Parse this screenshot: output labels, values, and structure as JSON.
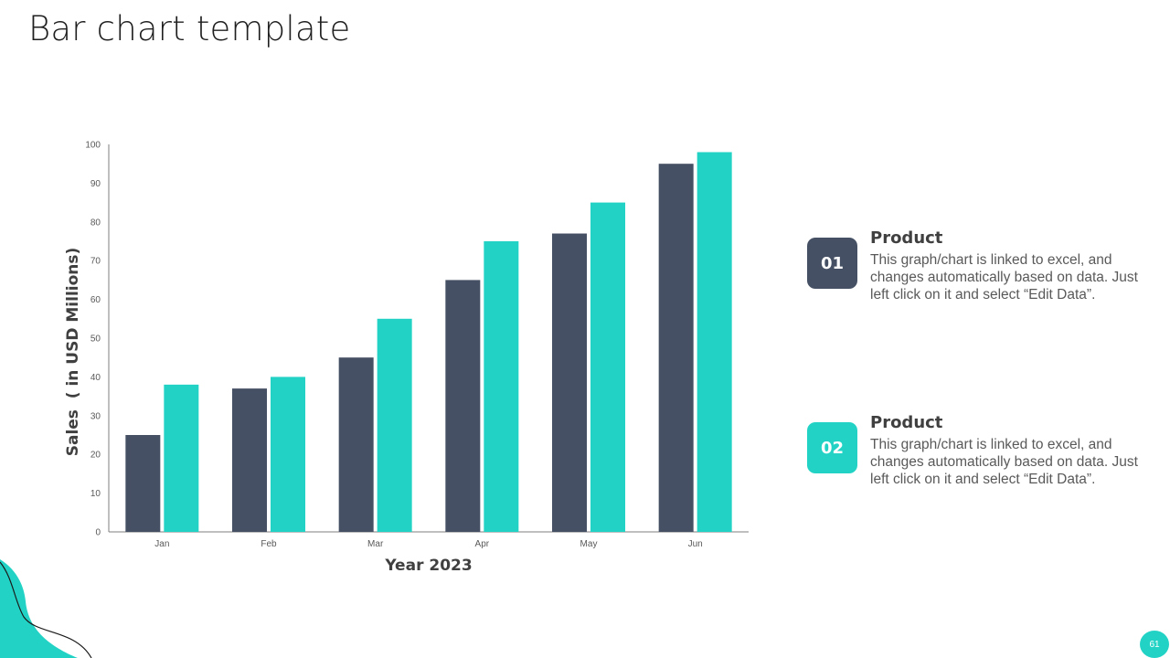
{
  "page": {
    "title": "Bar chart template",
    "page_number": "61"
  },
  "colors": {
    "series_dark": "#455064",
    "series_teal": "#22d3c5"
  },
  "legend": [
    {
      "number": "01",
      "title": "Product",
      "description": "This graph/chart is linked to excel, and changes automatically based on data. Just left click on it and select “Edit Data”."
    },
    {
      "number": "02",
      "title": "Product",
      "description": "This graph/chart is linked to excel, and changes automatically based on data. Just left click on it and select “Edit Data”."
    }
  ],
  "chart_data": {
    "type": "bar",
    "title": "",
    "categories": [
      "Jan",
      "Feb",
      "Mar",
      "Apr",
      "May",
      "Jun"
    ],
    "series": [
      {
        "name": "Product 01",
        "color": "#455064",
        "values": [
          25,
          37,
          45,
          65,
          77,
          95
        ]
      },
      {
        "name": "Product 02",
        "color": "#22d3c5",
        "values": [
          38,
          40,
          55,
          75,
          85,
          98
        ]
      }
    ],
    "xlabel": "Year 2023",
    "ylabel": "Sales  ( in USD Millions)",
    "ylim": [
      0,
      100
    ],
    "yticks": [
      0,
      10,
      20,
      30,
      40,
      50,
      60,
      70,
      80,
      90,
      100
    ],
    "grid": false,
    "legend": "right"
  }
}
